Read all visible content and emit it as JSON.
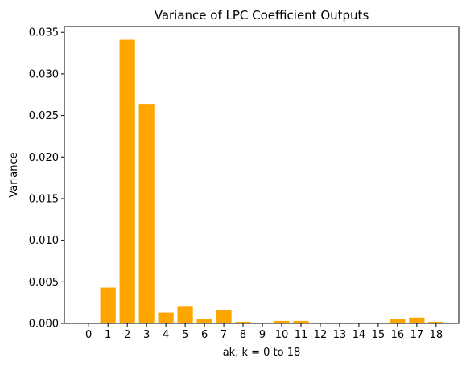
{
  "chart_data": {
    "type": "bar",
    "title": "Variance of LPC Coefficient Outputs",
    "xlabel": "ak, k = 0 to 18",
    "ylabel": "Variance",
    "categories": [
      "0",
      "1",
      "2",
      "3",
      "4",
      "5",
      "6",
      "7",
      "8",
      "9",
      "10",
      "11",
      "12",
      "13",
      "14",
      "15",
      "16",
      "17",
      "18"
    ],
    "values": [
      0.0,
      0.0043,
      0.0341,
      0.0264,
      0.0013,
      0.002,
      0.0005,
      0.0016,
      0.0002,
      0.0001,
      0.0003,
      0.0003,
      0.0001,
      0.0001,
      0.0001,
      0.0001,
      0.0005,
      0.0007,
      0.0002
    ],
    "ylim": [
      0,
      0.0357
    ],
    "yticks": [
      "0.000",
      "0.005",
      "0.010",
      "0.015",
      "0.020",
      "0.025",
      "0.030",
      "0.035"
    ],
    "bar_color": "#ffa500",
    "grid": false,
    "legend": false
  }
}
